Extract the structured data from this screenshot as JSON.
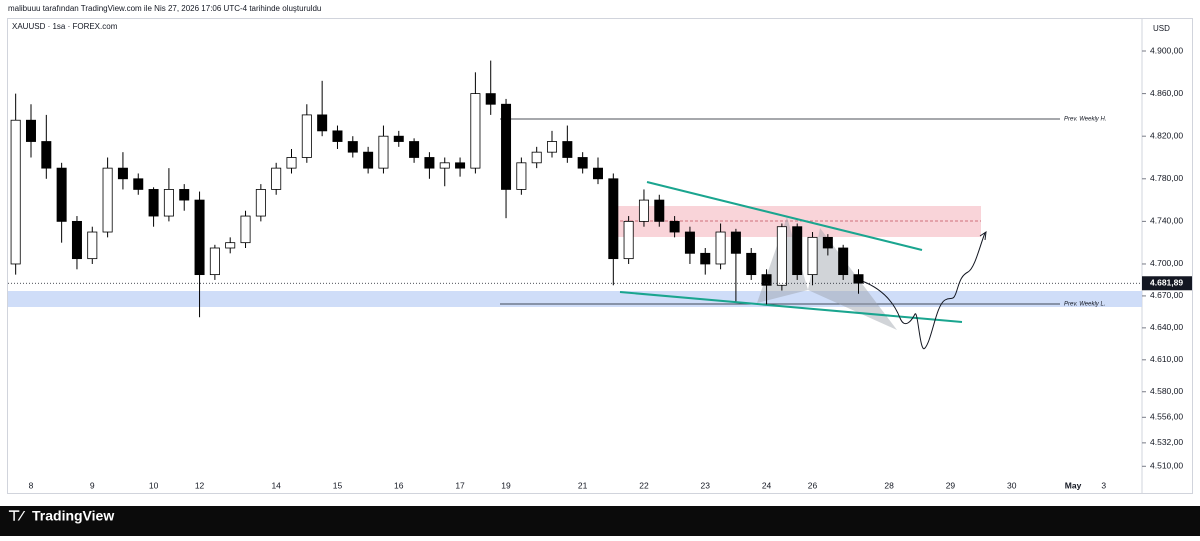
{
  "header": "malibuuu tarafından TradingView.com ile Nis 27, 2026 17:06 UTC-4 tarihinde oluşturuldu",
  "brand": "TradingView",
  "chart_data": {
    "type": "candlestick",
    "title": "XAUUSD · 1sa · FOREX.com",
    "currency": "USD",
    "annotations": [
      "Prev. Weekly H.",
      "Prev. Weekly L."
    ],
    "last_price": {
      "value": 4681.89,
      "label": "4.681,89"
    },
    "up_color": "#ffffff",
    "down_color": "#000000",
    "grid": false,
    "categories": [
      null,
      "8",
      null,
      null,
      null,
      "9",
      null,
      null,
      null,
      "10",
      null,
      null,
      "12",
      null,
      null,
      null,
      null,
      "14",
      null,
      null,
      null,
      "15",
      null,
      null,
      null,
      "16",
      null,
      null,
      null,
      "17",
      null,
      null,
      "19",
      null,
      null,
      null,
      null,
      "21",
      null,
      null,
      null,
      "22",
      null,
      null,
      null,
      "23",
      null,
      null,
      null,
      "24",
      null,
      null,
      "26",
      null,
      null,
      null,
      null,
      "28",
      null,
      null,
      null,
      "29",
      null,
      null,
      null,
      "30",
      null,
      null,
      null,
      "May",
      null,
      "3",
      null,
      null
    ],
    "open": [
      4700,
      4835,
      4815,
      4790,
      4740,
      4705,
      4730,
      4790,
      4780,
      4770,
      4745,
      4770,
      4760,
      4690,
      4715,
      4720,
      4745,
      4770,
      4790,
      4800,
      4840,
      4825,
      4815,
      4805,
      4790,
      4820,
      4815,
      4800,
      4790,
      4795,
      4790,
      4860,
      4850,
      4770,
      4795,
      4805,
      4815,
      4800,
      4790,
      4780,
      4705,
      4740,
      4760,
      4740,
      4730,
      4710,
      4700,
      4730,
      4710,
      4690,
      4680,
      4735,
      4690,
      4725,
      4715,
      4690,
      null,
      null,
      null,
      null,
      null,
      null,
      null,
      null,
      null,
      null,
      null,
      null,
      null,
      null,
      null,
      null,
      null,
      null
    ],
    "high": [
      4860,
      4850,
      4840,
      4795,
      4745,
      4735,
      4800,
      4805,
      4785,
      4772,
      4790,
      4775,
      4768,
      4718,
      4725,
      4750,
      4775,
      4795,
      4808,
      4850,
      4872,
      4830,
      4820,
      4810,
      4830,
      4825,
      4818,
      4805,
      4800,
      4800,
      4880,
      4891,
      4855,
      4800,
      4810,
      4825,
      4830,
      4805,
      4800,
      4785,
      4745,
      4770,
      4765,
      4745,
      4735,
      4715,
      4738,
      4733,
      4715,
      4695,
      4738,
      4738,
      4730,
      4728,
      4718,
      4695,
      null,
      null,
      null,
      null,
      null,
      null,
      null,
      null,
      null,
      null,
      null,
      null,
      null,
      null,
      null,
      null,
      null,
      null
    ],
    "low": [
      4690,
      4800,
      4780,
      4720,
      4695,
      4700,
      4725,
      4770,
      4765,
      4735,
      4740,
      4750,
      4650,
      4685,
      4710,
      4715,
      4740,
      4765,
      4785,
      4795,
      4820,
      4808,
      4800,
      4785,
      4785,
      4810,
      4795,
      4780,
      4773,
      4782,
      4785,
      4840,
      4743,
      4765,
      4790,
      4800,
      4795,
      4785,
      4775,
      4680,
      4700,
      4735,
      4735,
      4725,
      4700,
      4690,
      4695,
      4665,
      4685,
      4662,
      4675,
      4685,
      4680,
      4708,
      4685,
      4672,
      null,
      null,
      null,
      null,
      null,
      null,
      null,
      null,
      null,
      null,
      null,
      null,
      null,
      null,
      null,
      null,
      null,
      null
    ],
    "close": [
      4835,
      4815,
      4790,
      4740,
      4705,
      4730,
      4790,
      4780,
      4770,
      4745,
      4770,
      4760,
      4690,
      4715,
      4720,
      4745,
      4770,
      4790,
      4800,
      4840,
      4825,
      4815,
      4805,
      4790,
      4820,
      4815,
      4800,
      4790,
      4795,
      4790,
      4860,
      4850,
      4770,
      4795,
      4805,
      4815,
      4800,
      4790,
      4780,
      4705,
      4740,
      4760,
      4740,
      4730,
      4710,
      4700,
      4730,
      4710,
      4690,
      4680,
      4735,
      4690,
      4725,
      4715,
      4690,
      4682,
      null,
      null,
      null,
      null,
      null,
      null,
      null,
      null,
      null,
      null,
      null,
      null,
      null,
      null,
      null,
      null,
      null,
      null
    ],
    "ylim": [
      4499,
      4931
    ],
    "yticks": [
      {
        "value": 4900,
        "label": "4.900,00"
      },
      {
        "value": 4860,
        "label": "4.860,00"
      },
      {
        "value": 4820,
        "label": "4.820,00"
      },
      {
        "value": 4780,
        "label": "4.780,00"
      },
      {
        "value": 4740,
        "label": "4.740,00"
      },
      {
        "value": 4700,
        "label": "4.700,00"
      },
      {
        "value": 4670,
        "label": "4.670,00"
      },
      {
        "value": 4640,
        "label": "4.640,00"
      },
      {
        "value": 4610,
        "label": "4.610,00"
      },
      {
        "value": 4580,
        "label": "4.580,00"
      },
      {
        "value": 4556,
        "label": "4.556,00"
      },
      {
        "value": 4532,
        "label": "4.532,00"
      },
      {
        "value": 4510,
        "label": "4.510,00"
      }
    ]
  }
}
